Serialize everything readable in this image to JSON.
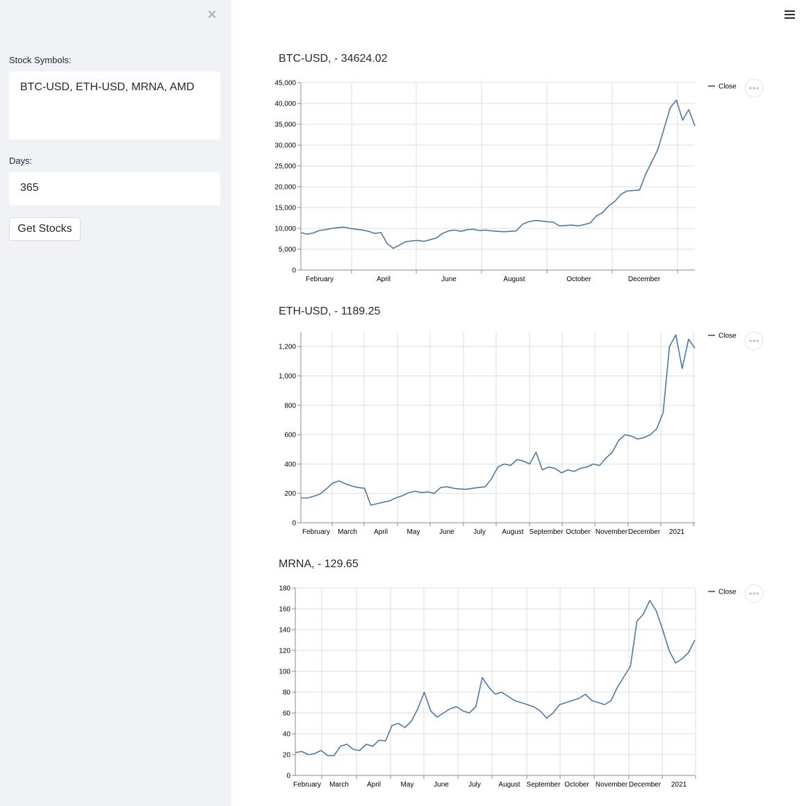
{
  "sidebar": {
    "close_label": "×",
    "symbols_label": "Stock Symbols:",
    "symbols_value": "BTC-USD, ETH-USD, MRNA, AMD",
    "days_label": "Days:",
    "days_value": "365",
    "button_label": "Get Stocks"
  },
  "menu_icon": "hamburger-icon",
  "colors": {
    "line": "#4c78a8",
    "sidebar_bg": "#f0f2f6",
    "grid": "#dddddd"
  },
  "chart_data": [
    {
      "type": "line",
      "title": "BTC-USD, - 34624.02",
      "legend": "Close",
      "legend_position": "top-right",
      "grid": true,
      "ylim": [
        0,
        45000
      ],
      "y_ticks": [
        "0",
        "5,000",
        "10,000",
        "15,000",
        "20,000",
        "25,000",
        "30,000",
        "35,000",
        "40,000",
        "45,000"
      ],
      "x_ticks": [
        "February",
        "April",
        "June",
        "August",
        "October",
        "December"
      ],
      "series": [
        {
          "values": [
            9000,
            8600,
            8900,
            9500,
            9700,
            10000,
            10200,
            10300,
            10000,
            9800,
            9600,
            9300,
            8800,
            9000,
            6400,
            5200,
            6000,
            6800,
            7000,
            7100,
            6900,
            7300,
            7700,
            8800,
            9400,
            9600,
            9300,
            9700,
            9800,
            9500,
            9600,
            9400,
            9300,
            9200,
            9300,
            9400,
            11000,
            11600,
            11900,
            11800,
            11600,
            11500,
            10600,
            10700,
            10800,
            10600,
            10900,
            11300,
            13000,
            13800,
            15400,
            16500,
            18200,
            19000,
            19100,
            19200,
            23000,
            26000,
            29000,
            34000,
            39000,
            40800,
            36000,
            38500,
            34624
          ]
        }
      ]
    },
    {
      "type": "line",
      "title": "ETH-USD, - 1189.25",
      "legend": "Close",
      "legend_position": "top-right",
      "grid": true,
      "ylim": [
        0,
        1300
      ],
      "y_ticks": [
        "0",
        "200",
        "400",
        "600",
        "800",
        "1,000",
        "1,200"
      ],
      "x_ticks": [
        "February",
        "March",
        "April",
        "May",
        "June",
        "July",
        "August",
        "September",
        "October",
        "November",
        "December",
        "2021"
      ],
      "series": [
        {
          "values": [
            170,
            168,
            180,
            195,
            230,
            270,
            285,
            265,
            250,
            240,
            235,
            120,
            130,
            140,
            150,
            170,
            185,
            205,
            215,
            205,
            210,
            200,
            240,
            245,
            235,
            230,
            228,
            235,
            240,
            245,
            300,
            380,
            400,
            390,
            430,
            420,
            400,
            480,
            360,
            380,
            370,
            340,
            360,
            350,
            370,
            380,
            400,
            390,
            440,
            480,
            560,
            600,
            590,
            570,
            580,
            600,
            640,
            750,
            1200,
            1280,
            1050,
            1250,
            1189
          ]
        }
      ]
    },
    {
      "type": "line",
      "title": "MRNA, - 129.65",
      "legend": "Close",
      "legend_position": "top-right",
      "grid": true,
      "ylim": [
        0,
        180
      ],
      "y_ticks": [
        "0",
        "20",
        "40",
        "60",
        "80",
        "100",
        "120",
        "140",
        "160",
        "180"
      ],
      "x_ticks": [
        "February",
        "March",
        "April",
        "May",
        "June",
        "July",
        "August",
        "September",
        "October",
        "November",
        "December",
        "2021"
      ],
      "series": [
        {
          "values": [
            22,
            23,
            20,
            21,
            24,
            19,
            19,
            28,
            30,
            25,
            24,
            30,
            28,
            34,
            33,
            48,
            50,
            46,
            52,
            64,
            80,
            62,
            56,
            60,
            64,
            66,
            62,
            60,
            66,
            94,
            85,
            78,
            80,
            76,
            72,
            70,
            68,
            66,
            62,
            55,
            60,
            68,
            70,
            72,
            74,
            78,
            72,
            70,
            68,
            72,
            85,
            95,
            105,
            148,
            155,
            168,
            158,
            140,
            120,
            108,
            112,
            118,
            130
          ]
        }
      ]
    }
  ]
}
